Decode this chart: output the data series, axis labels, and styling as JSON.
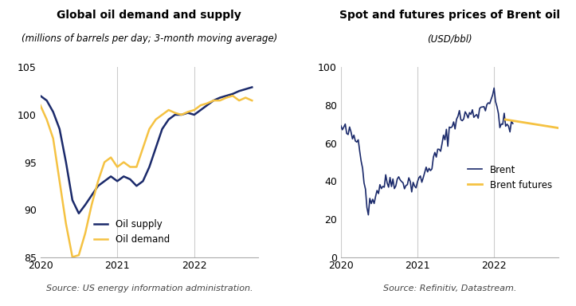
{
  "left_title": "Global oil demand and supply",
  "left_subtitle": "(millions of barrels per day; 3-month moving average)",
  "left_source": "Source: US energy information administration.",
  "left_ylim": [
    85,
    105
  ],
  "left_yticks": [
    85,
    90,
    95,
    100,
    105
  ],
  "left_color_supply": "#1B2A6B",
  "left_color_demand": "#F5C242",
  "left_legend_supply": "Oil supply",
  "left_legend_demand": "Oil demand",
  "right_title": "Spot and futures prices of Brent oil",
  "right_subtitle": "(USD/bbl)",
  "right_source": "Source: Refinitiv, Datastream.",
  "right_ylim": [
    0,
    100
  ],
  "right_yticks": [
    0,
    20,
    40,
    60,
    80,
    100
  ],
  "right_color_brent": "#1B2A6B",
  "right_color_futures": "#F5C242",
  "right_legend_brent": "Brent",
  "right_legend_futures": "Brent futures",
  "background_color": "#FFFFFF",
  "grid_color": "#CCCCCC",
  "title_fontsize": 10,
  "subtitle_fontsize": 8.5,
  "tick_fontsize": 9,
  "source_fontsize": 8
}
